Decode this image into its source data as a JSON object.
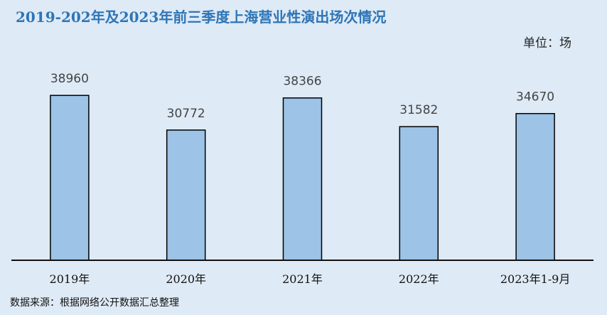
{
  "title": "2019-202年及2023年前三季度上海营业性演出场次情况",
  "unit_label": "单位：场",
  "source": "数据来源：根据网络公开数据汇总整理",
  "chart_data": {
    "type": "bar",
    "title": "2019-202年及2023年前三季度上海营业性演出场次情况",
    "categories": [
      "2019年",
      "2020年",
      "2021年",
      "2022年",
      "2023年1-9月"
    ],
    "values": [
      38960,
      30772,
      38366,
      31582,
      34670
    ],
    "data_labels": [
      "38960",
      "30772",
      "38366",
      "31582",
      "34670"
    ],
    "ylim": [
      0,
      40000
    ],
    "grid": false,
    "legend": "none",
    "colors": {
      "bar": "#9dc3e6",
      "bar_border": "#000000",
      "background": "#deeaf6",
      "title": "#2e75b6"
    }
  }
}
